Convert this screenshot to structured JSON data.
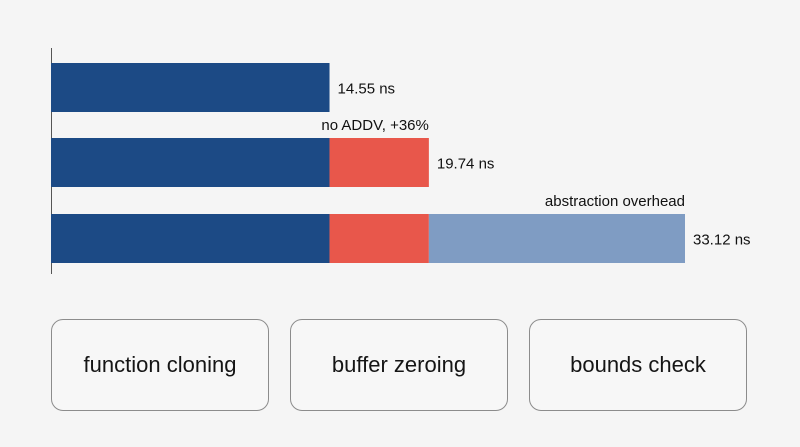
{
  "colors": {
    "background": "#f5f5f5",
    "axis": "#555555",
    "segment_colors": [
      "#1c4a85",
      "#e8574b",
      "#7f9cc3"
    ],
    "text": "#111111"
  },
  "chart_data": {
    "type": "bar",
    "orientation": "horizontal",
    "stacked": true,
    "unit": "ns",
    "categories": [
      "",
      "",
      ""
    ],
    "series": [
      {
        "name": "function cloning",
        "values": [
          14.55,
          14.55,
          14.55
        ]
      },
      {
        "name": "buffer zeroing",
        "values": [
          0,
          5.19,
          5.19
        ]
      },
      {
        "name": "bounds check",
        "values": [
          0,
          0,
          13.38
        ]
      }
    ],
    "totals": [
      14.55,
      19.74,
      33.12
    ],
    "total_labels": [
      "14.55 ns",
      "19.74 ns",
      "33.12 ns"
    ],
    "annotations": [
      {
        "bar": 1,
        "text": "no ADDV, +36%"
      },
      {
        "bar": 2,
        "text": "abstraction overhead"
      }
    ],
    "xlim": [
      0,
      33.12
    ],
    "title": "",
    "xlabel": "",
    "ylabel": "",
    "grid": false,
    "legend_placement": "bottom"
  },
  "legend": {
    "items": [
      "function cloning",
      "buffer zeroing",
      "bounds check"
    ]
  }
}
